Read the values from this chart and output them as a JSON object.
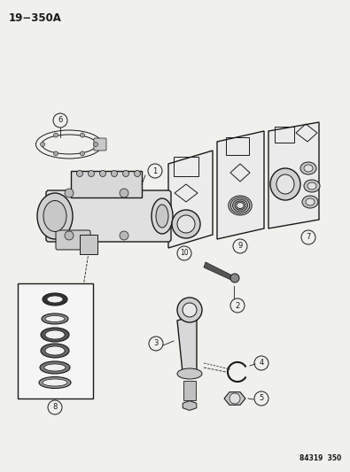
{
  "title": "19−350A",
  "footer": "84319  350",
  "bg_color": "#f0f0ec",
  "line_color": "#1a1a1a",
  "bg_color2": "#ffffff"
}
